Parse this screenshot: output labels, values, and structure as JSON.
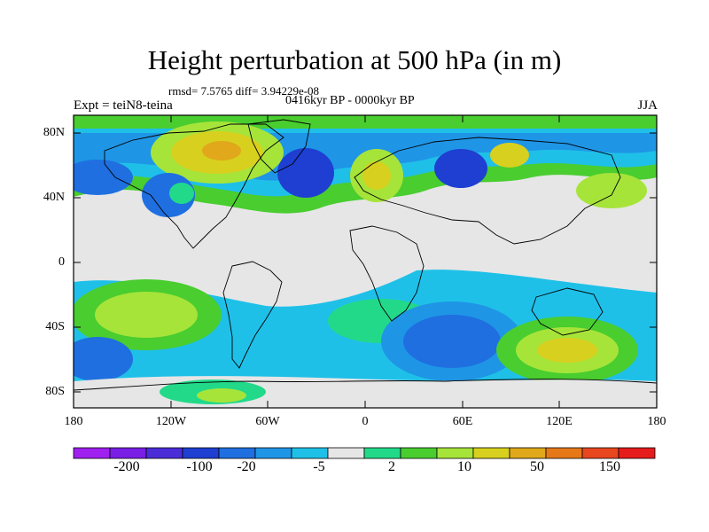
{
  "title": "Height perturbation at 500 hPa (in m)",
  "stats_line": "rmsd= 7.5765 diff= 3.94229e-08",
  "period_line": "0416kyr BP - 0000kyr BP",
  "experiment_label": "Expt = teiN8-teina",
  "season_label": "JJA",
  "lat_labels": [
    "80N",
    "40N",
    "0",
    "40S",
    "80S"
  ],
  "lon_labels": [
    "180",
    "120W",
    "60W",
    "0",
    "60E",
    "120E",
    "180"
  ],
  "colorbar": {
    "colors": [
      "#a020f0",
      "#7a1ee6",
      "#4b2dd8",
      "#1e3fd2",
      "#1f6fe0",
      "#1f95e6",
      "#1fc0e8",
      "#e6e6e6",
      "#22d98a",
      "#49cd2f",
      "#a6e43a",
      "#d8d01e",
      "#e0a81a",
      "#e67818",
      "#e8461e",
      "#e61c1c"
    ],
    "tick_labels": [
      "-200",
      "-100",
      "-20",
      "-5",
      "2",
      "10",
      "50",
      "150"
    ]
  },
  "palette": {
    "neutral": "#e6e6e6",
    "lightgreen": "#22d98a",
    "green": "#49cd2f",
    "yellowgreen": "#a6e43a",
    "gold": "#d8d01e",
    "orange": "#e0a81a",
    "cyan": "#1fc0e8",
    "lightblue": "#1f95e6",
    "blue": "#1f6fe0",
    "darkblue": "#1e3fd2"
  }
}
